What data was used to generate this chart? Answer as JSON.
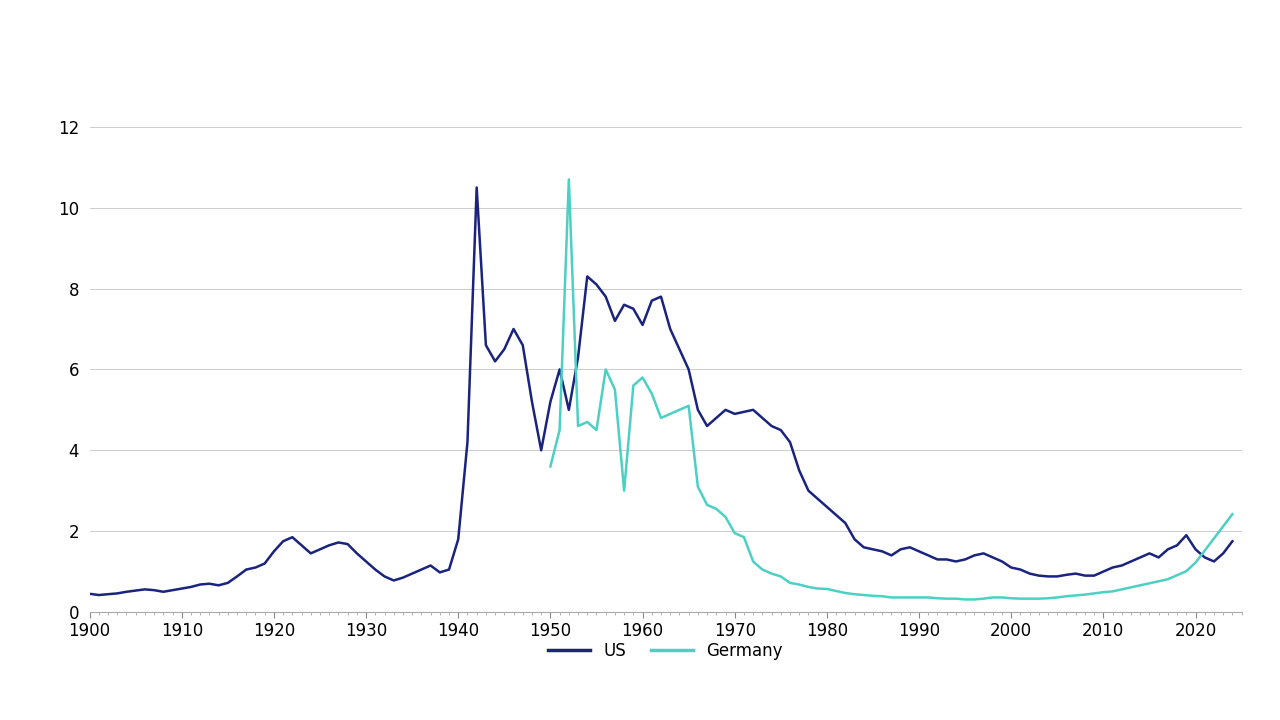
{
  "us_data": {
    "years": [
      1900,
      1901,
      1902,
      1903,
      1904,
      1905,
      1906,
      1907,
      1908,
      1909,
      1910,
      1911,
      1912,
      1913,
      1914,
      1915,
      1916,
      1917,
      1918,
      1919,
      1920,
      1921,
      1922,
      1923,
      1924,
      1925,
      1926,
      1927,
      1928,
      1929,
      1930,
      1931,
      1932,
      1933,
      1934,
      1935,
      1936,
      1937,
      1938,
      1939,
      1940,
      1941,
      1942,
      1943,
      1944,
      1945,
      1946,
      1947,
      1948,
      1949,
      1950,
      1951,
      1952,
      1953,
      1954,
      1955,
      1956,
      1957,
      1958,
      1959,
      1960,
      1961,
      1962,
      1963,
      1964,
      1965,
      1966,
      1967,
      1968,
      1969,
      1970,
      1971,
      1972,
      1973,
      1974,
      1975,
      1976,
      1977,
      1978,
      1979,
      1980,
      1981,
      1982,
      1983,
      1984,
      1985,
      1986,
      1987,
      1988,
      1989,
      1990,
      1991,
      1992,
      1993,
      1994,
      1995,
      1996,
      1997,
      1998,
      1999,
      2000,
      2001,
      2002,
      2003,
      2004,
      2005,
      2006,
      2007,
      2008,
      2009,
      2010,
      2011,
      2012,
      2013,
      2014,
      2015,
      2016,
      2017,
      2018,
      2019,
      2020,
      2021,
      2022,
      2023,
      2024
    ],
    "values": [
      0.45,
      0.42,
      0.44,
      0.46,
      0.5,
      0.53,
      0.56,
      0.54,
      0.5,
      0.54,
      0.58,
      0.62,
      0.68,
      0.7,
      0.66,
      0.72,
      0.88,
      1.05,
      1.1,
      1.2,
      1.5,
      1.75,
      1.85,
      1.65,
      1.45,
      1.55,
      1.65,
      1.72,
      1.68,
      1.45,
      1.25,
      1.05,
      0.88,
      0.78,
      0.85,
      0.95,
      1.05,
      1.15,
      0.98,
      1.05,
      1.8,
      4.2,
      10.5,
      6.6,
      6.2,
      6.5,
      7.0,
      6.6,
      5.2,
      4.0,
      5.2,
      6.0,
      5.0,
      6.3,
      8.3,
      8.1,
      7.8,
      7.2,
      7.6,
      7.5,
      7.1,
      7.7,
      7.8,
      7.0,
      6.5,
      6.0,
      5.0,
      4.6,
      4.8,
      5.0,
      4.9,
      4.95,
      5.0,
      4.8,
      4.6,
      4.5,
      4.2,
      3.5,
      3.0,
      2.8,
      2.6,
      2.4,
      2.2,
      1.8,
      1.6,
      1.55,
      1.5,
      1.4,
      1.55,
      1.6,
      1.5,
      1.4,
      1.3,
      1.3,
      1.25,
      1.3,
      1.4,
      1.45,
      1.35,
      1.25,
      1.1,
      1.05,
      0.95,
      0.9,
      0.88,
      0.88,
      0.92,
      0.95,
      0.9,
      0.9,
      1.0,
      1.1,
      1.15,
      1.25,
      1.35,
      1.45,
      1.35,
      1.55,
      1.65,
      1.9,
      1.55,
      1.35,
      1.25,
      1.45,
      1.75
    ]
  },
  "de_data": {
    "years": [
      1950,
      1951,
      1952,
      1953,
      1954,
      1955,
      1956,
      1957,
      1958,
      1959,
      1960,
      1961,
      1962,
      1963,
      1964,
      1965,
      1966,
      1967,
      1968,
      1969,
      1970,
      1971,
      1972,
      1973,
      1974,
      1975,
      1976,
      1977,
      1978,
      1979,
      1980,
      1981,
      1982,
      1983,
      1984,
      1985,
      1986,
      1987,
      1988,
      1989,
      1990,
      1991,
      1992,
      1993,
      1994,
      1995,
      1996,
      1997,
      1998,
      1999,
      2000,
      2001,
      2002,
      2003,
      2004,
      2005,
      2006,
      2007,
      2008,
      2009,
      2010,
      2011,
      2012,
      2013,
      2014,
      2015,
      2016,
      2017,
      2018,
      2019,
      2020,
      2021,
      2022,
      2023,
      2024
    ],
    "values": [
      3.6,
      4.5,
      10.7,
      4.6,
      4.7,
      4.5,
      6.0,
      5.5,
      3.0,
      5.6,
      5.8,
      5.4,
      4.8,
      4.9,
      5.0,
      5.1,
      3.1,
      2.65,
      2.55,
      2.35,
      1.95,
      1.85,
      1.25,
      1.05,
      0.95,
      0.88,
      0.72,
      0.68,
      0.62,
      0.58,
      0.57,
      0.52,
      0.47,
      0.44,
      0.42,
      0.4,
      0.39,
      0.36,
      0.36,
      0.36,
      0.36,
      0.36,
      0.34,
      0.33,
      0.33,
      0.31,
      0.31,
      0.33,
      0.36,
      0.36,
      0.34,
      0.33,
      0.33,
      0.33,
      0.34,
      0.36,
      0.39,
      0.41,
      0.43,
      0.46,
      0.49,
      0.51,
      0.56,
      0.61,
      0.66,
      0.71,
      0.76,
      0.81,
      0.91,
      1.01,
      1.22,
      1.52,
      1.82,
      2.12,
      2.42
    ]
  },
  "us_color": "#1a237e",
  "de_color": "#4dd0c4",
  "background_color": "#ffffff",
  "grid_color": "#cccccc",
  "xlim": [
    1900,
    2025
  ],
  "ylim": [
    0,
    13
  ],
  "yticks": [
    0,
    2,
    4,
    6,
    8,
    10,
    12
  ],
  "xticks": [
    1900,
    1910,
    1920,
    1930,
    1940,
    1950,
    1960,
    1970,
    1980,
    1990,
    2000,
    2010,
    2020
  ],
  "legend_us": "US",
  "legend_de": "Germany",
  "tick_fontsize": 12,
  "legend_fontsize": 12
}
